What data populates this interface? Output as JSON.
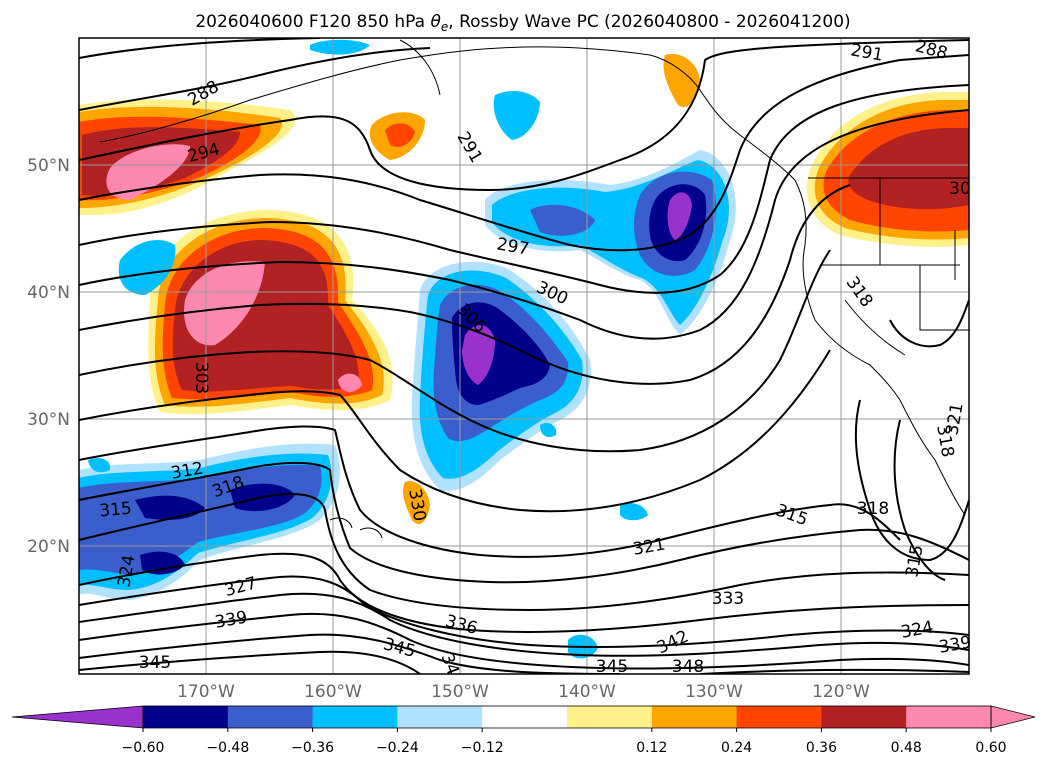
{
  "title": "2026040600 F120 850 hPa",
  "title_symbol": "θ",
  "title_symbol_sub": "e",
  "title_rest": ", Rossby Wave PC (2026040800 - 2026041200)",
  "lat_labels": [
    "50°N",
    "40°N",
    "30°N",
    "20°N"
  ],
  "lon_labels": [
    "170°W",
    "160°W",
    "150°W",
    "140°W",
    "130°W",
    "120°W"
  ],
  "colorbar": {
    "ticks": [
      "−0.60",
      "−0.48",
      "−0.36",
      "−0.24",
      "−0.12",
      "0.12",
      "0.24",
      "0.36",
      "0.48",
      "0.60"
    ],
    "colors": [
      "#9932cc",
      "#00008b",
      "#3a5fcd",
      "#00bfff",
      "#b0e2ff",
      "#ffffff",
      "#fff08a",
      "#ffa500",
      "#ff4500",
      "#b22222",
      "#ff88b0",
      "#ff88b0"
    ]
  },
  "contour_labels": [
    {
      "id": "c288a",
      "text": "288"
    },
    {
      "id": "c294",
      "text": "294"
    },
    {
      "id": "c291a",
      "text": "291"
    },
    {
      "id": "c291b",
      "text": "291"
    },
    {
      "id": "c288b",
      "text": "288"
    },
    {
      "id": "c297",
      "text": "297"
    },
    {
      "id": "c300",
      "text": "300"
    },
    {
      "id": "c306",
      "text": "306"
    },
    {
      "id": "c303",
      "text": "303"
    },
    {
      "id": "c318a",
      "text": "318"
    },
    {
      "id": "c312",
      "text": "312"
    },
    {
      "id": "c318b",
      "text": "318"
    },
    {
      "id": "c315a",
      "text": "315"
    },
    {
      "id": "c324a",
      "text": "324"
    },
    {
      "id": "c330",
      "text": "330"
    },
    {
      "id": "c327",
      "text": "327"
    },
    {
      "id": "c339a",
      "text": "339"
    },
    {
      "id": "c345a",
      "text": "345"
    },
    {
      "id": "c345b",
      "text": "345"
    },
    {
      "id": "c336",
      "text": "336"
    },
    {
      "id": "c342",
      "text": "342"
    },
    {
      "id": "c345c",
      "text": "345"
    },
    {
      "id": "c348",
      "text": "348"
    },
    {
      "id": "c333",
      "text": "333"
    },
    {
      "id": "c321a",
      "text": "321"
    },
    {
      "id": "c315b",
      "text": "315"
    },
    {
      "id": "c318c",
      "text": "318"
    },
    {
      "id": "c315c",
      "text": "315"
    },
    {
      "id": "c324b",
      "text": "324"
    },
    {
      "id": "c339b",
      "text": "339"
    },
    {
      "id": "c318d",
      "text": "318"
    },
    {
      "id": "c321b",
      "text": "321"
    },
    {
      "id": "c30",
      "text": "30"
    },
    {
      "id": "c34",
      "text": "34"
    }
  ]
}
